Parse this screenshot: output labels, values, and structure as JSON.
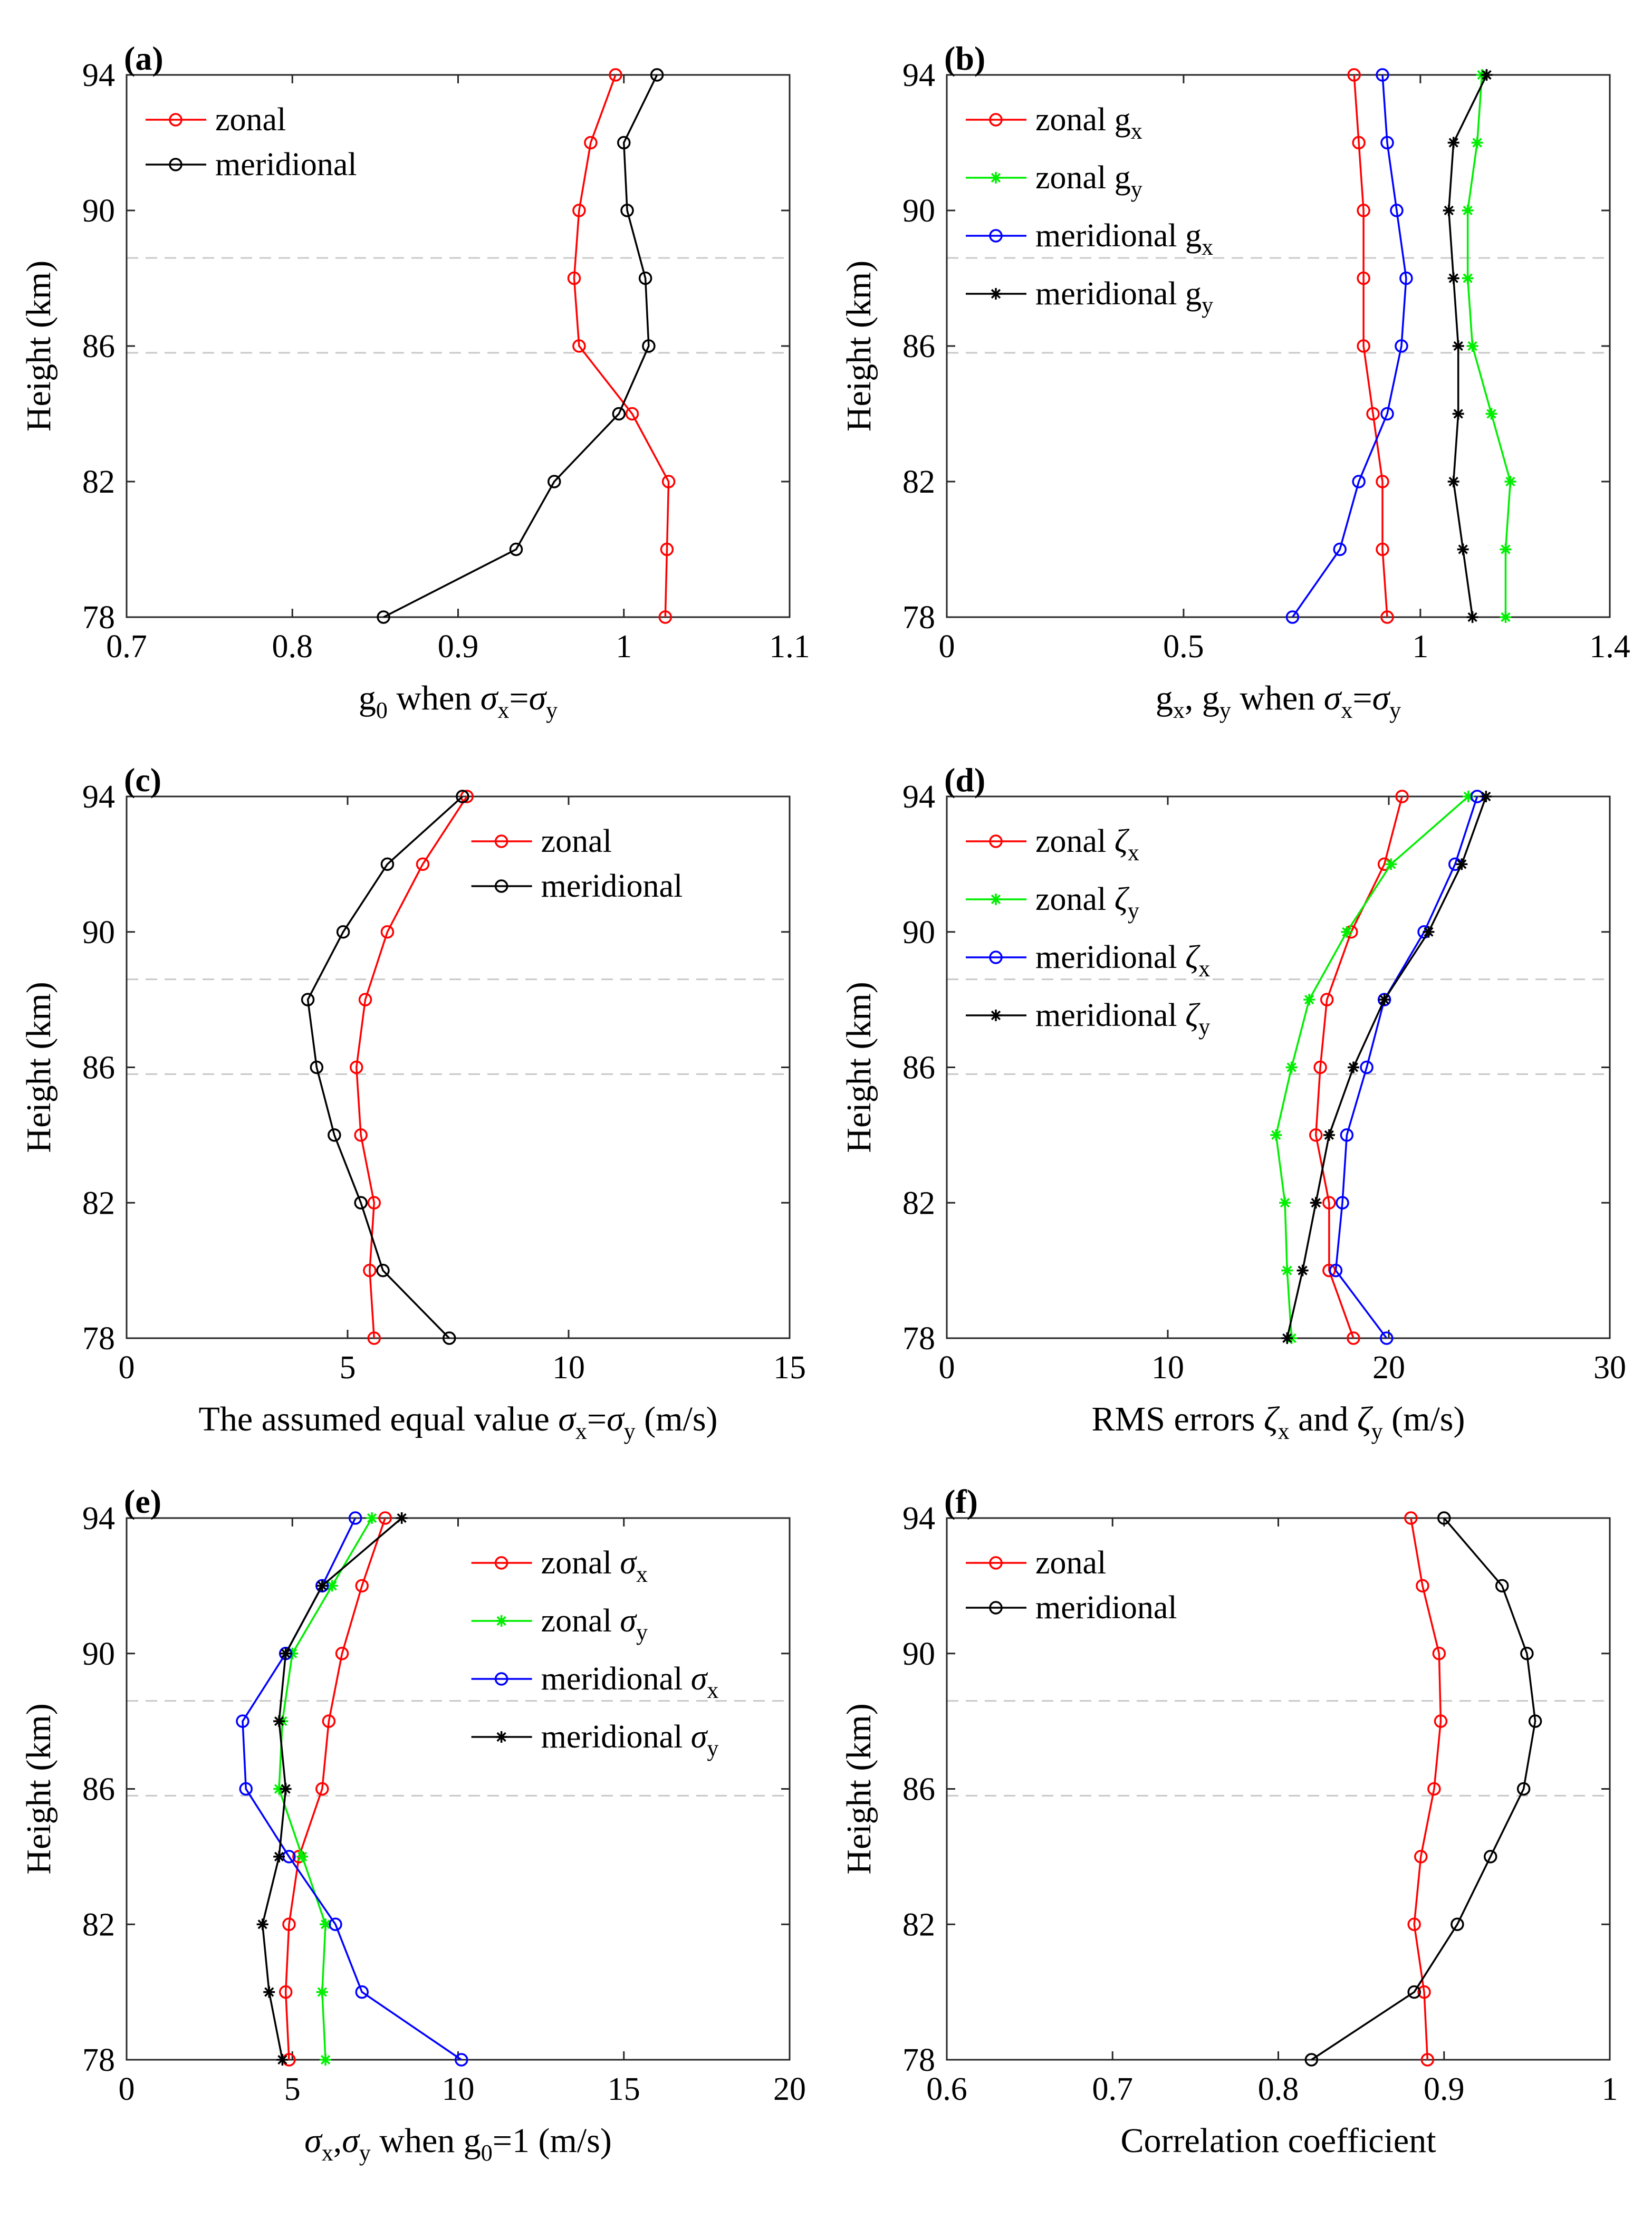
{
  "figure": {
    "ylabel": "Height (km)",
    "yticks": [
      78,
      82,
      86,
      90,
      94
    ],
    "ylim": [
      78,
      94
    ],
    "dashed_lines_km": [
      85.8,
      88.6
    ],
    "colors": {
      "zonal": "#ff0000",
      "meridional": "#000000",
      "zonal_y": "#00ee00",
      "meridional_x": "#0000ff"
    }
  },
  "chart_data": [
    {
      "panel": "(a)",
      "type": "line",
      "xlabel": "g0 when σx=σy",
      "xlim": [
        0.7,
        1.1
      ],
      "xticks": [
        "0.7",
        "0.8",
        "0.9",
        "1",
        "1.1"
      ],
      "legend": "top-left",
      "y": [
        78,
        80,
        82,
        84,
        86,
        88,
        90,
        92,
        94
      ],
      "series": [
        {
          "name": "zonal",
          "color": "#ff0000",
          "marker": "circle",
          "x": [
            1.025,
            1.026,
            1.027,
            1.005,
            0.973,
            0.97,
            0.973,
            0.98,
            0.995
          ]
        },
        {
          "name": "meridional",
          "color": "#000000",
          "marker": "circle",
          "x": [
            0.855,
            0.935,
            0.958,
            0.997,
            1.015,
            1.013,
            1.002,
            1.0,
            1.02
          ]
        }
      ]
    },
    {
      "panel": "(b)",
      "type": "line",
      "xlabel": "gx, gy when σx=σy",
      "xlim": [
        0,
        1.4
      ],
      "xticks": [
        "0",
        "0.5",
        "1",
        "1.4"
      ],
      "legend": "top-left",
      "y": [
        78,
        80,
        82,
        84,
        86,
        88,
        90,
        92,
        94
      ],
      "series": [
        {
          "name": "zonal gx",
          "color": "#ff0000",
          "marker": "circle",
          "x": [
            0.93,
            0.92,
            0.92,
            0.9,
            0.88,
            0.88,
            0.88,
            0.87,
            0.86
          ]
        },
        {
          "name": "zonal gy",
          "color": "#00ee00",
          "marker": "star",
          "x": [
            1.18,
            1.18,
            1.19,
            1.15,
            1.11,
            1.1,
            1.1,
            1.12,
            1.13
          ]
        },
        {
          "name": "meridional gx",
          "color": "#0000ff",
          "marker": "circle",
          "x": [
            0.73,
            0.83,
            0.87,
            0.93,
            0.96,
            0.97,
            0.95,
            0.93,
            0.92
          ]
        },
        {
          "name": "meridional gy",
          "color": "#000000",
          "marker": "asterisk",
          "x": [
            1.11,
            1.09,
            1.07,
            1.08,
            1.08,
            1.07,
            1.06,
            1.07,
            1.14
          ]
        }
      ]
    },
    {
      "panel": "(c)",
      "type": "line",
      "xlabel": "The assumed equal value σx=σy (m/s)",
      "xlim": [
        0,
        15
      ],
      "xticks": [
        "0",
        "5",
        "10",
        "15"
      ],
      "legend": "top-right",
      "y": [
        78,
        80,
        82,
        84,
        86,
        88,
        90,
        92,
        94
      ],
      "series": [
        {
          "name": "zonal",
          "color": "#ff0000",
          "marker": "circle",
          "x": [
            5.6,
            5.5,
            5.6,
            5.3,
            5.2,
            5.4,
            5.9,
            6.7,
            7.7
          ]
        },
        {
          "name": "meridional",
          "color": "#000000",
          "marker": "circle",
          "x": [
            7.3,
            5.8,
            5.3,
            4.7,
            4.3,
            4.1,
            4.9,
            5.9,
            7.6
          ]
        }
      ]
    },
    {
      "panel": "(d)",
      "type": "line",
      "xlabel": "RMS errors ζx and ζy (m/s)",
      "xlim": [
        0,
        30
      ],
      "xticks": [
        "0",
        "10",
        "20",
        "30"
      ],
      "legend": "top-left",
      "y": [
        78,
        80,
        82,
        84,
        86,
        88,
        90,
        92,
        94
      ],
      "series": [
        {
          "name": "zonal ζx",
          "color": "#ff0000",
          "marker": "circle",
          "x": [
            18.4,
            17.3,
            17.3,
            16.7,
            16.9,
            17.2,
            18.3,
            19.8,
            20.6
          ]
        },
        {
          "name": "zonal ζy",
          "color": "#00ee00",
          "marker": "star",
          "x": [
            15.6,
            15.4,
            15.3,
            14.9,
            15.6,
            16.4,
            18.1,
            20.1,
            23.6
          ]
        },
        {
          "name": "meridional ζx",
          "color": "#0000ff",
          "marker": "circle",
          "x": [
            19.9,
            17.6,
            17.9,
            18.1,
            19.0,
            19.8,
            21.6,
            23.0,
            24.0
          ]
        },
        {
          "name": "meridional ζy",
          "color": "#000000",
          "marker": "asterisk",
          "x": [
            15.4,
            16.1,
            16.7,
            17.3,
            18.4,
            19.8,
            21.8,
            23.3,
            24.4
          ]
        }
      ]
    },
    {
      "panel": "(e)",
      "type": "line",
      "xlabel": "σx,σy when g0=1 (m/s)",
      "xlim": [
        0,
        20
      ],
      "xticks": [
        "0",
        "5",
        "10",
        "15",
        "20"
      ],
      "legend": "top-right",
      "y": [
        78,
        80,
        82,
        84,
        86,
        88,
        90,
        92,
        94
      ],
      "series": [
        {
          "name": "zonal σx",
          "color": "#ff0000",
          "marker": "circle",
          "x": [
            4.9,
            4.8,
            4.9,
            5.2,
            5.9,
            6.1,
            6.5,
            7.1,
            7.8
          ]
        },
        {
          "name": "zonal σy",
          "color": "#00ee00",
          "marker": "star",
          "x": [
            6.0,
            5.9,
            6.0,
            5.3,
            4.6,
            4.7,
            5.0,
            6.2,
            7.4
          ]
        },
        {
          "name": "meridional σx",
          "color": "#0000ff",
          "marker": "circle",
          "x": [
            10.1,
            7.1,
            6.3,
            4.9,
            3.6,
            3.5,
            4.8,
            5.9,
            6.9
          ]
        },
        {
          "name": "meridional σy",
          "color": "#000000",
          "marker": "asterisk",
          "x": [
            4.7,
            4.3,
            4.1,
            4.6,
            4.8,
            4.6,
            4.8,
            5.9,
            8.3
          ]
        }
      ]
    },
    {
      "panel": "(f)",
      "type": "line",
      "xlabel": "Correlation coefficient",
      "xlim": [
        0.6,
        1
      ],
      "xticks": [
        "0.6",
        "0.7",
        "0.8",
        "0.9",
        "1"
      ],
      "legend": "top-left",
      "y": [
        78,
        80,
        82,
        84,
        86,
        88,
        90,
        92,
        94
      ],
      "series": [
        {
          "name": "zonal",
          "color": "#ff0000",
          "marker": "circle",
          "x": [
            0.89,
            0.888,
            0.882,
            0.886,
            0.894,
            0.898,
            0.897,
            0.887,
            0.88
          ]
        },
        {
          "name": "meridional",
          "color": "#000000",
          "marker": "circle",
          "x": [
            0.82,
            0.882,
            0.908,
            0.928,
            0.948,
            0.955,
            0.95,
            0.935,
            0.9
          ]
        }
      ]
    }
  ]
}
